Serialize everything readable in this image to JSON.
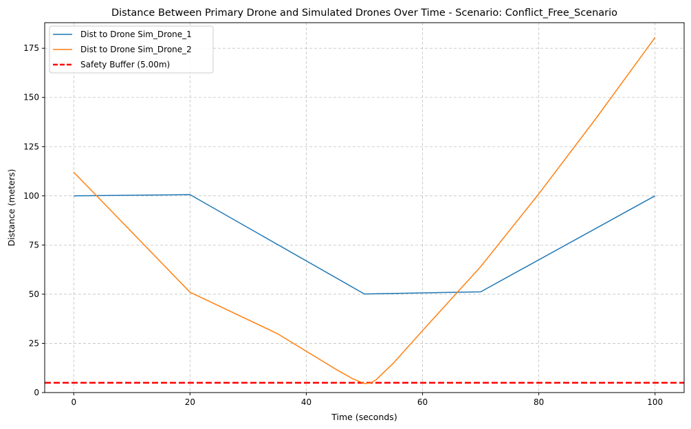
{
  "chart_data": {
    "type": "line",
    "title": "Distance Between Primary Drone and Simulated Drones Over Time - Scenario: Conflict_Free_Scenario",
    "xlabel": "Time (seconds)",
    "ylabel": "Distance (meters)",
    "xlim": [
      -5,
      105
    ],
    "ylim": [
      0,
      188
    ],
    "x_ticks": [
      0,
      20,
      40,
      60,
      80,
      100
    ],
    "y_ticks": [
      0,
      25,
      50,
      75,
      100,
      125,
      150,
      175
    ],
    "grid": true,
    "legend_position": "upper-left",
    "series": [
      {
        "name": "Dist to Drone Sim_Drone_1",
        "color": "#1f77b4",
        "style": "solid",
        "x": [
          0,
          20,
          50,
          70,
          100
        ],
        "y": [
          100,
          100.6,
          50.1,
          51.2,
          100
        ]
      },
      {
        "name": "Dist to Drone Sim_Drone_2",
        "color": "#ff7f0e",
        "style": "solid",
        "x": [
          0,
          20,
          35,
          45,
          48,
          50,
          51,
          52,
          55,
          60,
          70,
          80,
          90,
          100
        ],
        "y": [
          112,
          51,
          30,
          12,
          7,
          4.6,
          4.8,
          6.5,
          15,
          31.5,
          64,
          101,
          140,
          180.5
        ]
      }
    ],
    "reference_lines": [
      {
        "name": "Safety Buffer (5.00m)",
        "color": "#ff0000",
        "style": "dashed",
        "y": 5
      }
    ]
  }
}
